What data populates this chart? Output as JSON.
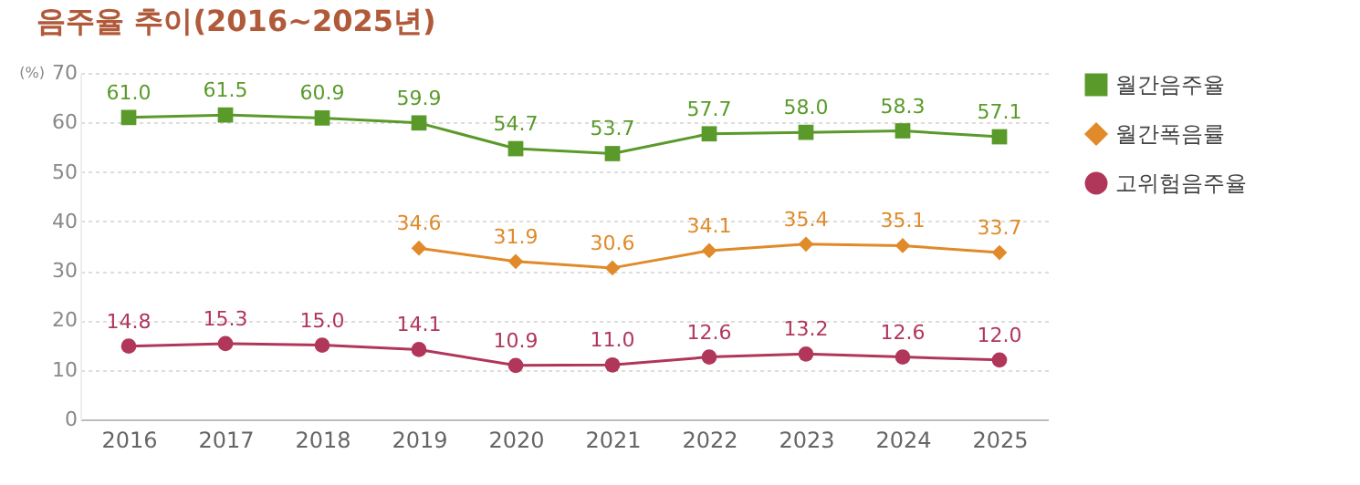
{
  "chart_data": {
    "type": "line",
    "title": "음주율 추이(2016~2025년)",
    "ylabel": "(%)",
    "categories": [
      "2016",
      "2017",
      "2018",
      "2019",
      "2020",
      "2021",
      "2022",
      "2023",
      "2024",
      "2025"
    ],
    "series": [
      {
        "name": "월간음주율",
        "color": "#5a9a2a",
        "marker": "square",
        "values": [
          61.0,
          61.5,
          60.9,
          59.9,
          54.7,
          53.7,
          57.7,
          58.0,
          58.3,
          57.1
        ],
        "value_labels": [
          "61.0",
          "61.5",
          "60.9",
          "59.9",
          "54.7",
          "53.7",
          "57.7",
          "58.0",
          "58.3",
          "57.1"
        ]
      },
      {
        "name": "월간폭음률",
        "color": "#e08a2a",
        "marker": "diamond",
        "values": [
          null,
          null,
          null,
          34.6,
          31.9,
          30.6,
          34.1,
          35.4,
          35.1,
          33.7
        ],
        "value_labels": [
          null,
          null,
          null,
          "34.6",
          "31.9",
          "30.6",
          "34.1",
          "35.4",
          "35.1",
          "33.7"
        ]
      },
      {
        "name": "고위험음주율",
        "color": "#b0365a",
        "marker": "circle",
        "values": [
          14.8,
          15.3,
          15.0,
          14.1,
          10.9,
          11.0,
          12.6,
          13.2,
          12.6,
          12.0
        ],
        "value_labels": [
          "14.8",
          "15.3",
          "15.0",
          "14.1",
          "10.9",
          "11.0",
          "12.6",
          "13.2",
          "12.6",
          "12.0"
        ]
      }
    ],
    "ylim": [
      0,
      70
    ],
    "yticks": [
      0,
      10,
      20,
      30,
      40,
      50,
      60,
      70
    ],
    "grid": "y",
    "legend": "right"
  }
}
